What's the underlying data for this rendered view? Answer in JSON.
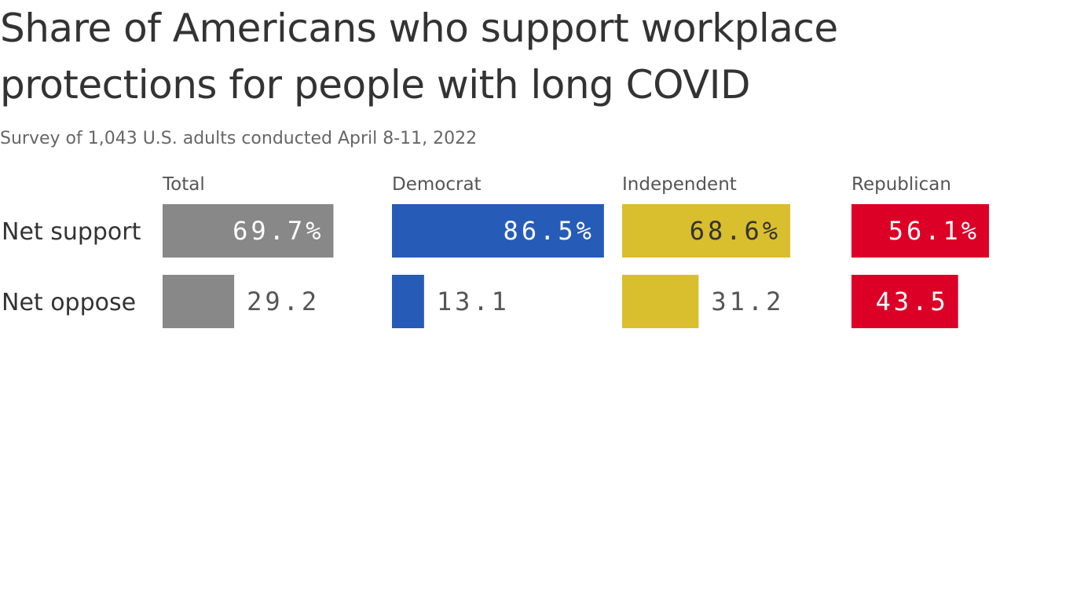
{
  "title_lines": [
    "Share of Americans who support workplace",
    "protections for people with long COVID"
  ],
  "subtitle": "Survey of 1,043 U.S. adults conducted April 8-11, 2022",
  "chart_data": {
    "type": "bar",
    "orientation": "horizontal",
    "categories": [
      "Net support",
      "Net oppose"
    ],
    "panels": [
      {
        "name": "Total",
        "color": "#888888",
        "values": [
          69.7,
          29.2
        ],
        "labels": [
          "69.7%",
          "29.2"
        ],
        "label_inside": [
          true,
          false
        ],
        "label_color": [
          "#ffffff",
          "#555555"
        ]
      },
      {
        "name": "Democrat",
        "color": "#265cb7",
        "values": [
          86.5,
          13.1
        ],
        "labels": [
          "86.5%",
          "13.1"
        ],
        "label_inside": [
          true,
          false
        ],
        "label_color": [
          "#ffffff",
          "#555555"
        ]
      },
      {
        "name": "Independent",
        "color": "#d9be2d",
        "values": [
          68.6,
          31.2
        ],
        "labels": [
          "68.6%",
          "31.2"
        ],
        "label_inside": [
          true,
          false
        ],
        "label_color": [
          "#333333",
          "#555555"
        ]
      },
      {
        "name": "Republican",
        "color": "#dc0026",
        "values": [
          56.1,
          43.5
        ],
        "labels": [
          "56.1%",
          "43.5"
        ],
        "label_inside": [
          true,
          true
        ],
        "label_color": [
          "#ffffff",
          "#ffffff"
        ]
      }
    ]
  }
}
